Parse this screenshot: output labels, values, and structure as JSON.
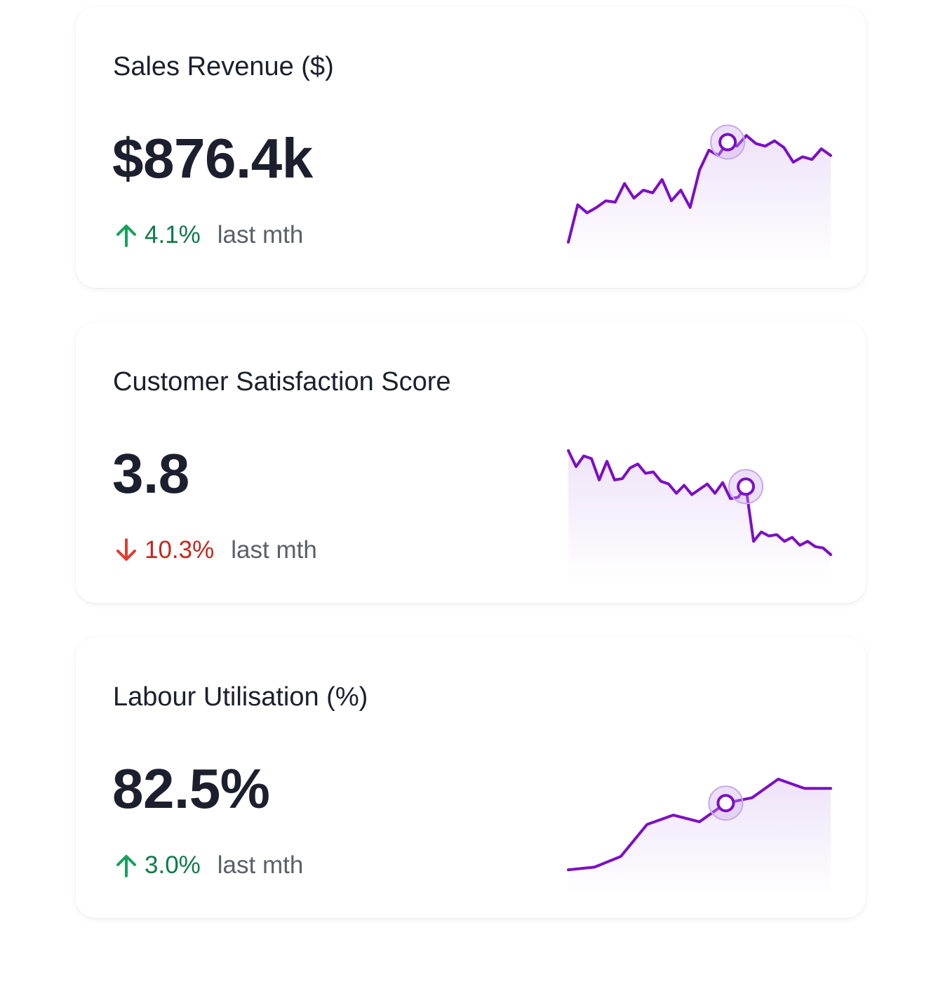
{
  "colors": {
    "line": "#7c0fc4",
    "fill": "#b57fe0",
    "marker_ring": "#c9a6ec",
    "up": "#16a05a",
    "down": "#e23b2e"
  },
  "chart_data": [
    {
      "type": "line",
      "title": "Sales Revenue ($)",
      "value": "$876.4k",
      "delta": "4.1%",
      "direction": "up",
      "comparison": "last mth",
      "ylim": [
        0,
        100
      ],
      "highlight_index": 17,
      "values": [
        10,
        38,
        32,
        36,
        41,
        40,
        54,
        43,
        49,
        47,
        57,
        41,
        49,
        36,
        64,
        79,
        75,
        85,
        82,
        90,
        84,
        82,
        86,
        81,
        70,
        74,
        72,
        80,
        75
      ]
    },
    {
      "type": "line",
      "title": "Customer Satisfaction Score",
      "value": "3.8",
      "delta": "10.3%",
      "direction": "down",
      "comparison": "last mth",
      "ylim": [
        0,
        100
      ],
      "highlight_index": 23,
      "values": [
        90,
        78,
        86,
        84,
        68,
        82,
        68,
        69,
        77,
        80,
        73,
        74,
        67,
        65,
        58,
        64,
        57,
        61,
        65,
        58,
        66,
        54,
        55,
        63,
        22,
        29,
        26,
        27,
        22,
        25,
        19,
        22,
        18,
        17,
        12
      ]
    },
    {
      "type": "line",
      "title": "Labour Utilisation (%)",
      "value": "82.5%",
      "delta": "3.0%",
      "direction": "up",
      "comparison": "last mth",
      "ylim": [
        0,
        100
      ],
      "highlight_index": 6,
      "values": [
        12,
        14,
        22,
        46,
        53,
        48,
        62,
        66,
        80,
        73,
        73
      ]
    }
  ]
}
